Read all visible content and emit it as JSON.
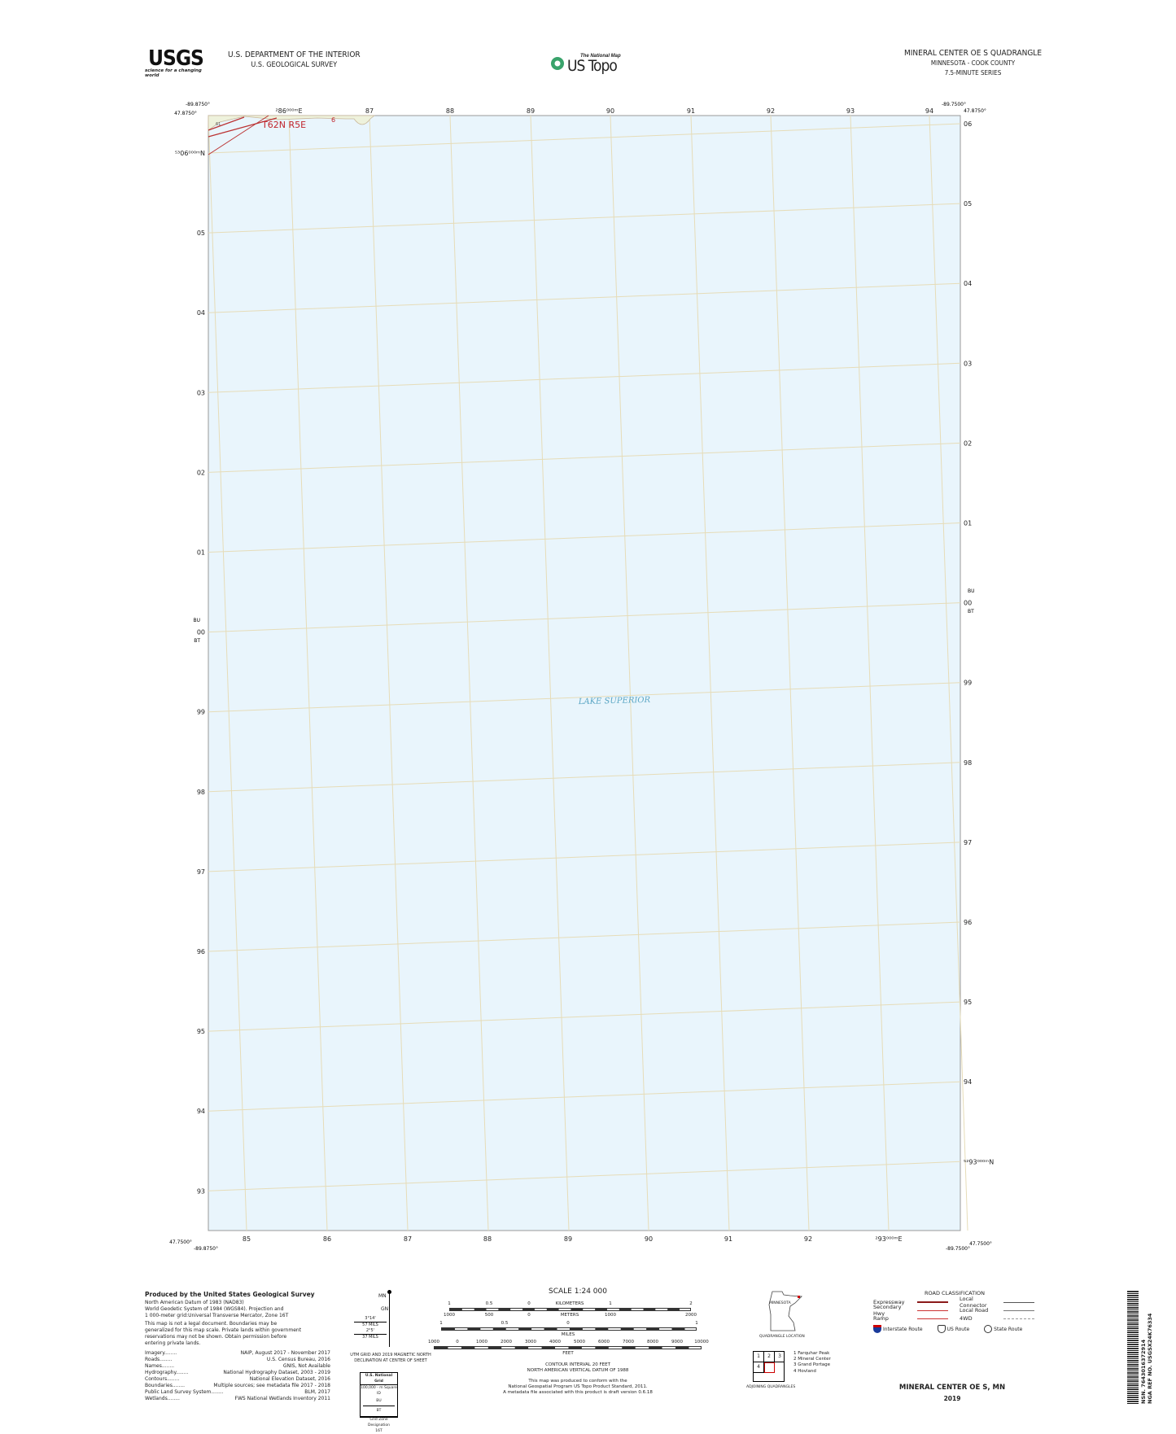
{
  "header": {
    "logo_text": "USGS",
    "logo_tagline": "science for a changing world",
    "dept_line1": "U.S. DEPARTMENT OF THE INTERIOR",
    "dept_line2": "U.S. GEOLOGICAL SURVEY",
    "center_logo_small": "The National Map",
    "center_logo_large": "US Topo",
    "quad_title": "MINERAL CENTER OE S QUADRANGLE",
    "state_county": "MINNESOTA - COOK COUNTY",
    "series": "7.5-MINUTE SERIES"
  },
  "map": {
    "water_color": "#e9f5fc",
    "grid_color": "#e6dcb8",
    "corners": {
      "nw_lon": "-89.8750°",
      "nw_lat": "47.8750°",
      "ne_lon": "-89.7500°",
      "ne_lat": "47.8750°",
      "sw_lat": "47.7500°",
      "sw_lon": "-89.8750°",
      "se_lon": "-89.7500°",
      "se_lat": "47.7500°"
    },
    "top_ticks": [
      "²86⁰⁰⁰ᵐE",
      "87",
      "88",
      "89",
      "90",
      "91",
      "92",
      "93",
      "94"
    ],
    "bottom_ticks": [
      "85",
      "86",
      "87",
      "88",
      "89",
      "90",
      "91",
      "92",
      "²93⁰⁰⁰ᵐE"
    ],
    "left_ticks": [
      "⁵³06⁰⁰⁰ᵐN",
      "05",
      "04",
      "03",
      "02",
      "01",
      "00",
      "99",
      "98",
      "97",
      "96",
      "95",
      "94",
      "93"
    ],
    "right_ticks": [
      "06",
      "05",
      "04",
      "03",
      "02",
      "01",
      "00",
      "99",
      "98",
      "97",
      "96",
      "95",
      "94",
      "⁵²93⁰⁰⁰ᵐN"
    ],
    "grid_zone_left": {
      "above": "BU",
      "below": "BT"
    },
    "grid_zone_right": {
      "above": "BU",
      "below": "BT"
    },
    "township_label": "T62N R5E",
    "section_label": "6",
    "route_label": "61",
    "water_label": "LAKE SUPERIOR"
  },
  "footer": {
    "producer_title": "Produced by the United States Geological Survey",
    "datum_lines": [
      "North American Datum of 1983 (NAD83)",
      "World Geodetic System of 1984 (WGS84).  Projection and",
      "1 000-meter grid:Universal Transverse Mercator, Zone 16T"
    ],
    "disclaimer_lines": [
      "This map is not a legal document. Boundaries may be",
      "generalized for this map scale. Private lands within government",
      "reservations may not be shown. Obtain permission before",
      "entering private lands."
    ],
    "sources": [
      {
        "label": "Imagery",
        "value": "NAIP, August 2017 - November 2017"
      },
      {
        "label": "Roads",
        "value": "U.S. Census Bureau, 2016"
      },
      {
        "label": "Names",
        "value": "GNIS, Not Available"
      },
      {
        "label": "Hydrography",
        "value": "National Hydrography Dataset, 2003 - 2019"
      },
      {
        "label": "Contours",
        "value": "National Elevation Dataset, 2016"
      },
      {
        "label": "Boundaries",
        "value": "Multiple sources; see metadata file 2017 - 2018"
      },
      {
        "label": "Public Land Survey System",
        "value": "BLM, 2017"
      },
      {
        "label": "Wetlands",
        "value": "FWS National Wetlands Inventory 2011"
      }
    ],
    "declination": {
      "mn": "MN",
      "gn": "GN",
      "angle1": "3°14'",
      "mils1": "57 MILS",
      "angle2": "2°5'",
      "mils2": "37 MILS",
      "caption1": "UTM GRID AND 2019 MAGNETIC NORTH",
      "caption2": "DECLINATION AT CENTER OF SHEET"
    },
    "usng": {
      "title": "U.S. National Grid",
      "subtitle": "100,000 - m Square ID",
      "upper": "BU",
      "lower": "BT",
      "tick": "00",
      "gzd_label": "Grid Zone Designation",
      "gzd": "16T"
    },
    "scale": {
      "title": "SCALE 1:24 000",
      "km_labels": [
        "1",
        "0.5",
        "0",
        "KILOMETERS",
        "1",
        "2"
      ],
      "m_labels": [
        "1000",
        "500",
        "0",
        "METERS",
        "1000",
        "2000"
      ],
      "mi_labels": [
        "1",
        "0.5",
        "0",
        "1"
      ],
      "mi_unit": "MILES",
      "ft_labels": [
        "1000",
        "0",
        "1000",
        "2000",
        "3000",
        "4000",
        "5000",
        "6000",
        "7000",
        "8000",
        "9000",
        "10000"
      ],
      "ft_unit": "FEET"
    },
    "contour_lines": [
      "CONTOUR INTERVAL 20 FEET",
      "NORTH AMERICAN VERTICAL DATUM OF 1988"
    ],
    "standard_lines": [
      "This map was produced to conform with the",
      "National Geospatial Program US Topo Product Standard, 2011.",
      "A metadata file associated with this product is draft version 0.6.18"
    ],
    "location": {
      "state": "MINNESOTA",
      "caption": "QUADRANGLE LOCATION"
    },
    "adjoining": {
      "caption": "ADJOINING QUADRANGLES",
      "cells": [
        "1",
        "2",
        "3",
        "4"
      ],
      "names": [
        "1 Farquhar Peak",
        "2 Mineral Center",
        "3 Grand Portage",
        "4 Hovland"
      ]
    },
    "roads": {
      "title": "ROAD CLASSIFICATION",
      "left": [
        "Expressway",
        "Secondary Hwy",
        "Ramp"
      ],
      "right": [
        "Local Connector",
        "Local Road",
        "4WD"
      ],
      "shields": [
        "Interstate Route",
        "US Route",
        "State Route"
      ]
    },
    "bottom_title": "MINERAL CENTER OE S,  MN",
    "year": "2019",
    "barcode_line1": "NSN. 7643016372914",
    "barcode_line2": "NGA REF NO. USGSX24K76334"
  }
}
